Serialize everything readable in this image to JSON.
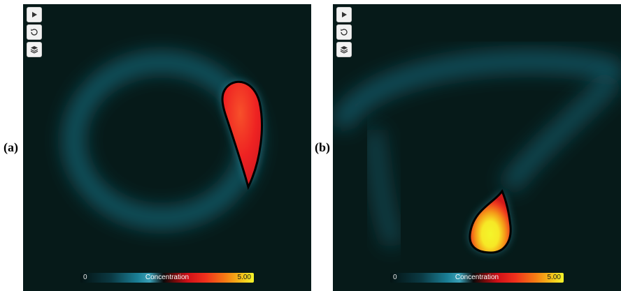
{
  "panels": [
    {
      "label": "(a)",
      "toolbar": {
        "play": {
          "icon": "play-icon"
        },
        "reset": {
          "icon": "reset-icon"
        },
        "layers": {
          "icon": "layers-icon"
        }
      },
      "colorbar": {
        "title": "Concentration",
        "min": "0",
        "max": "5.00"
      }
    },
    {
      "label": "(b)",
      "toolbar": {
        "play": {
          "icon": "play-icon"
        },
        "reset": {
          "icon": "reset-icon"
        },
        "layers": {
          "icon": "layers-icon"
        }
      },
      "colorbar": {
        "title": "Concentration",
        "min": "0",
        "max": "5.00"
      }
    }
  ],
  "colors": {
    "background": "#061a19",
    "low_cyan": "#2a8ea4",
    "mid_red": "#ee2222",
    "high_yellow": "#f4f52a"
  }
}
